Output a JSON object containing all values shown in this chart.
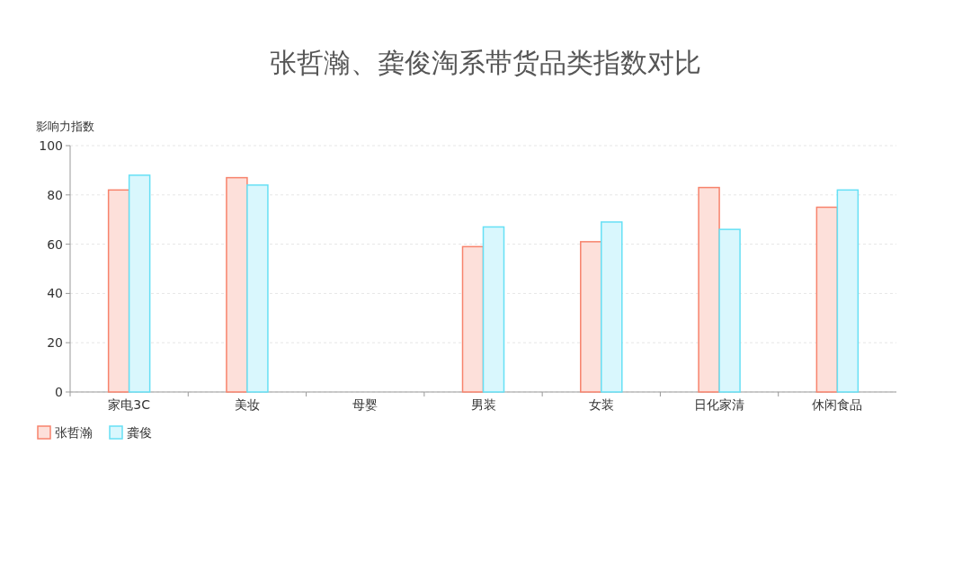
{
  "chart_data": {
    "type": "bar",
    "title": "张哲瀚、龚俊淘系带货品类指数对比",
    "ylabel": "影响力指数",
    "categories": [
      "家电3C",
      "美妆",
      "母婴",
      "男装",
      "女装",
      "日化家清",
      "休闲食品"
    ],
    "series": [
      {
        "name": "张哲瀚",
        "color": "#f7836c",
        "values": [
          82,
          87,
          null,
          59,
          61,
          83,
          75
        ]
      },
      {
        "name": "龚俊",
        "color": "#66e0f5",
        "values": [
          88,
          84,
          null,
          67,
          69,
          66,
          82
        ]
      }
    ],
    "ylim": [
      0,
      100
    ],
    "yticks": [
      0,
      20,
      40,
      60,
      80,
      100
    ],
    "grid": "y",
    "legend": "bottom left"
  }
}
